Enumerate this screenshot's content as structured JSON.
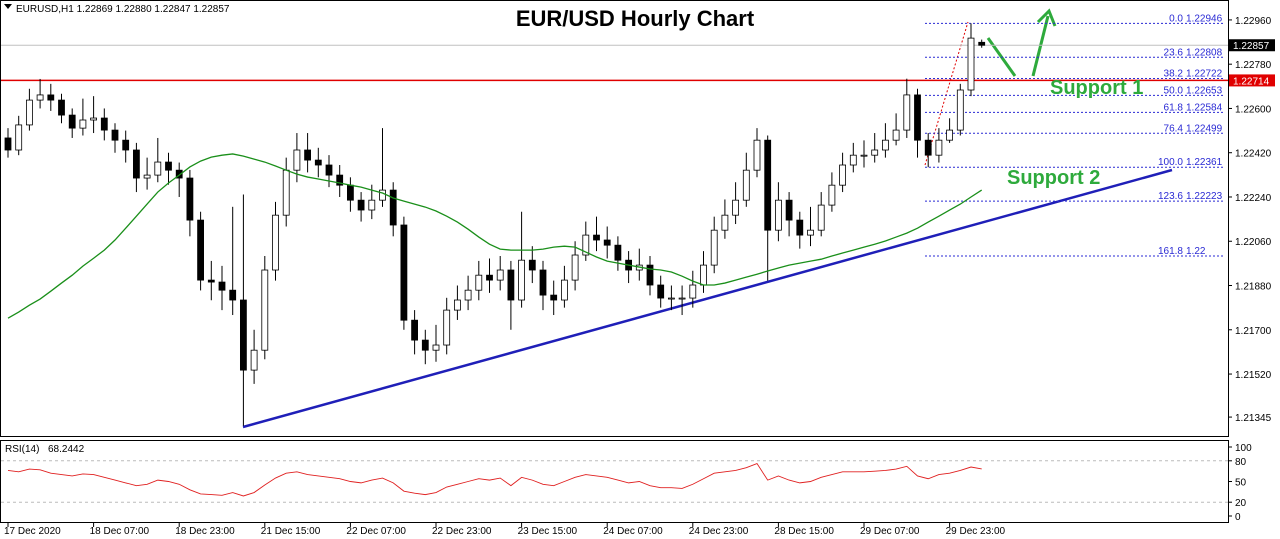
{
  "chart_data": {
    "type": "candlestick",
    "title": "EUR/USD Hourly Chart",
    "header": "EURUSD,H1  1.22869 1.22880 1.22847 1.22857",
    "up_color": "#ffffff",
    "down_color": "#000000",
    "candles": [
      [
        1.2248,
        1.2252,
        1.224,
        1.22431
      ],
      [
        1.22431,
        1.2257,
        1.2241,
        1.22533
      ],
      [
        1.22533,
        1.2268,
        1.2251,
        1.22634
      ],
      [
        1.22634,
        1.2272,
        1.226,
        1.22655
      ],
      [
        1.22655,
        1.227,
        1.2259,
        1.22634
      ],
      [
        1.22634,
        1.2266,
        1.2254,
        1.22573
      ],
      [
        1.22573,
        1.226,
        1.2248,
        1.2252
      ],
      [
        1.2252,
        1.2264,
        1.2249,
        1.22553
      ],
      [
        1.22553,
        1.2265,
        1.225,
        1.22561
      ],
      [
        1.22561,
        1.226,
        1.2247,
        1.22512
      ],
      [
        1.22512,
        1.2254,
        1.2242,
        1.22471
      ],
      [
        1.22471,
        1.2251,
        1.2238,
        1.22431
      ],
      [
        1.22431,
        1.2246,
        1.2226,
        1.22317
      ],
      [
        1.22317,
        1.224,
        1.2227,
        1.22329
      ],
      [
        1.22329,
        1.2248,
        1.223,
        1.22382
      ],
      [
        1.22382,
        1.2242,
        1.2229,
        1.22349
      ],
      [
        1.22349,
        1.2238,
        1.2224,
        1.22317
      ],
      [
        1.22317,
        1.2235,
        1.2208,
        1.22146
      ],
      [
        1.22146,
        1.2218,
        1.2186,
        1.21902
      ],
      [
        1.21902,
        1.2198,
        1.2182,
        1.21894
      ],
      [
        1.21894,
        1.2196,
        1.2178,
        1.21861
      ],
      [
        1.21861,
        1.222,
        1.2176,
        1.21821
      ],
      [
        1.21821,
        1.2225,
        1.2131,
        1.21536
      ],
      [
        1.21536,
        1.217,
        1.2148,
        1.21617
      ],
      [
        1.21617,
        1.22,
        1.2158,
        1.21943
      ],
      [
        1.21943,
        1.2222,
        1.219,
        1.22166
      ],
      [
        1.22166,
        1.224,
        1.2212,
        1.22349
      ],
      [
        1.22349,
        1.225,
        1.223,
        1.22431
      ],
      [
        1.22431,
        1.225,
        1.2234,
        1.2239
      ],
      [
        1.2239,
        1.2244,
        1.2232,
        1.2237
      ],
      [
        1.2237,
        1.2241,
        1.2228,
        1.22329
      ],
      [
        1.22329,
        1.2237,
        1.2224,
        1.22288
      ],
      [
        1.22288,
        1.2232,
        1.2218,
        1.22227
      ],
      [
        1.22227,
        1.2226,
        1.2214,
        1.22187
      ],
      [
        1.22187,
        1.2229,
        1.2215,
        1.22227
      ],
      [
        1.22227,
        1.2252,
        1.222,
        1.22268
      ],
      [
        1.22268,
        1.223,
        1.2208,
        1.22126
      ],
      [
        1.22126,
        1.2216,
        1.217,
        1.21739
      ],
      [
        1.21739,
        1.2178,
        1.216,
        1.21658
      ],
      [
        1.21658,
        1.217,
        1.2156,
        1.21617
      ],
      [
        1.21617,
        1.2172,
        1.2157,
        1.21638
      ],
      [
        1.21638,
        1.2183,
        1.216,
        1.2178
      ],
      [
        1.2178,
        1.2188,
        1.2174,
        1.21821
      ],
      [
        1.21821,
        1.2192,
        1.2178,
        1.21861
      ],
      [
        1.21861,
        1.2198,
        1.2182,
        1.21922
      ],
      [
        1.21922,
        1.2199,
        1.2185,
        1.21902
      ],
      [
        1.21902,
        1.22,
        1.2186,
        1.21943
      ],
      [
        1.21943,
        1.2198,
        1.217,
        1.21821
      ],
      [
        1.21821,
        1.2218,
        1.2179,
        1.21983
      ],
      [
        1.21983,
        1.2204,
        1.2189,
        1.21943
      ],
      [
        1.21943,
        1.2198,
        1.2178,
        1.21841
      ],
      [
        1.21841,
        1.219,
        1.2176,
        1.21821
      ],
      [
        1.21821,
        1.2196,
        1.2179,
        1.21902
      ],
      [
        1.21902,
        1.2206,
        1.2186,
        1.22004
      ],
      [
        1.22004,
        1.2214,
        1.2198,
        1.22085
      ],
      [
        1.22085,
        1.2216,
        1.2202,
        1.22065
      ],
      [
        1.22065,
        1.2212,
        1.2199,
        1.22044
      ],
      [
        1.22044,
        1.2208,
        1.2194,
        1.21983
      ],
      [
        1.21983,
        1.2202,
        1.2189,
        1.21943
      ],
      [
        1.21943,
        1.2203,
        1.219,
        1.21963
      ],
      [
        1.21963,
        1.22,
        1.2184,
        1.21882
      ],
      [
        1.21882,
        1.2192,
        1.2179,
        1.21829
      ],
      [
        1.21829,
        1.2188,
        1.2178,
        1.21829
      ],
      [
        1.21829,
        1.2188,
        1.2176,
        1.21829
      ],
      [
        1.21829,
        1.2194,
        1.2179,
        1.21882
      ],
      [
        1.21882,
        1.2202,
        1.2185,
        1.21963
      ],
      [
        1.21963,
        1.2216,
        1.2193,
        1.22105
      ],
      [
        1.22105,
        1.2223,
        1.2207,
        1.22166
      ],
      [
        1.22166,
        1.223,
        1.2213,
        1.22227
      ],
      [
        1.22227,
        1.2242,
        1.222,
        1.22349
      ],
      [
        1.22349,
        1.2252,
        1.2232,
        1.22471
      ],
      [
        1.22471,
        1.2249,
        1.219,
        1.22105
      ],
      [
        1.22105,
        1.223,
        1.2206,
        1.22227
      ],
      [
        1.22227,
        1.2226,
        1.2208,
        1.22146
      ],
      [
        1.22146,
        1.2218,
        1.2203,
        1.22085
      ],
      [
        1.22085,
        1.222,
        1.2204,
        1.22105
      ],
      [
        1.22105,
        1.2226,
        1.2208,
        1.22207
      ],
      [
        1.22207,
        1.2234,
        1.2218,
        1.22288
      ],
      [
        1.22288,
        1.2242,
        1.2226,
        1.2237
      ],
      [
        1.2237,
        1.2246,
        1.2234,
        1.2241
      ],
      [
        1.2241,
        1.2247,
        1.2236,
        1.2241
      ],
      [
        1.2241,
        1.225,
        1.2238,
        1.22431
      ],
      [
        1.22431,
        1.2254,
        1.224,
        1.22471
      ],
      [
        1.22471,
        1.2258,
        1.2245,
        1.22512
      ],
      [
        1.22512,
        1.22721,
        1.2248,
        1.22655
      ],
      [
        1.22655,
        1.2268,
        1.224,
        1.22471
      ],
      [
        1.22471,
        1.225,
        1.22361,
        1.2241
      ],
      [
        1.2241,
        1.2252,
        1.2238,
        1.22471
      ],
      [
        1.22471,
        1.2256,
        1.2246,
        1.22512
      ],
      [
        1.22512,
        1.227,
        1.2249,
        1.22675
      ],
      [
        1.22675,
        1.22946,
        1.2265,
        1.22886
      ],
      [
        1.22869,
        1.2288,
        1.22847,
        1.22857
      ]
    ],
    "ma": {
      "color": "#1a8f1a",
      "values": [
        1.21747,
        1.21772,
        1.218,
        1.21825,
        1.21857,
        1.2189,
        1.21922,
        1.21959,
        1.21991,
        1.22024,
        1.22065,
        1.22113,
        1.22162,
        1.22211,
        1.2226,
        1.22297,
        1.22329,
        1.22362,
        1.22386,
        1.22402,
        1.2241,
        1.22415,
        1.22406,
        1.22394,
        1.22382,
        1.22366,
        1.22349,
        1.22333,
        1.22321,
        1.22313,
        1.22305,
        1.22297,
        1.22288,
        1.2228,
        1.22268,
        1.22256,
        1.22236,
        1.22223,
        1.22211,
        1.22199,
        1.22183,
        1.22162,
        1.22138,
        1.22109,
        1.22077,
        1.22048,
        1.22028,
        1.22024,
        1.22024,
        1.22024,
        1.22028,
        1.22036,
        1.2204,
        1.22036,
        1.22016,
        1.21996,
        1.21979,
        1.21971,
        1.21963,
        1.21955,
        1.21947,
        1.21943,
        1.21935,
        1.21918,
        1.21898,
        1.21882,
        1.21882,
        1.2189,
        1.21902,
        1.21914,
        1.21926,
        1.21939,
        1.21951,
        1.21963,
        1.21971,
        1.21979,
        1.21987,
        1.22,
        1.22012,
        1.22024,
        1.22036,
        1.22048,
        1.22061,
        1.22077,
        1.22093,
        1.22113,
        1.22138,
        1.22162,
        1.22187,
        1.22211,
        1.2224,
        1.22268
      ]
    },
    "ylim": [
      1.21264,
      1.23041
    ],
    "yticks": [
      {
        "value": 1.2296,
        "label": "1.22960"
      },
      {
        "value": 1.2278,
        "label": "1.22780"
      },
      {
        "value": 1.226,
        "label": "1.22600"
      },
      {
        "value": 1.2242,
        "label": "1.22420"
      },
      {
        "value": 1.2224,
        "label": "1.22240"
      },
      {
        "value": 1.2206,
        "label": "1.22060"
      },
      {
        "value": 1.2188,
        "label": "1.21880"
      },
      {
        "value": 1.217,
        "label": "1.21700"
      },
      {
        "value": 1.2152,
        "label": "1.21520"
      },
      1.21345
    ],
    "xticks": [
      {
        "value": 0,
        "label": "17 Dec 2020"
      },
      {
        "value": 8,
        "label": "18 Dec 07:00"
      },
      {
        "value": 16,
        "label": "18 Dec 23:00"
      },
      {
        "value": 24,
        "label": "21 Dec 15:00"
      },
      {
        "value": 32,
        "label": "22 Dec 07:00"
      },
      {
        "value": 40,
        "label": "22 Dec 23:00"
      },
      {
        "value": 48,
        "label": "23 Dec 15:00"
      },
      {
        "value": 56,
        "label": "24 Dec 07:00"
      },
      {
        "value": 64,
        "label": "24 Dec 23:00"
      },
      {
        "value": 72,
        "label": "28 Dec 15:00"
      },
      {
        "value": 80,
        "label": "29 Dec 07:00"
      },
      {
        "value": 88,
        "label": "29 Dec 23:00"
      }
    ],
    "hline": {
      "value": 1.22714,
      "color": "#e00000"
    },
    "fib": {
      "color": "#2a2ad4",
      "levels": [
        {
          "level": "0.0",
          "value": 1.22946
        },
        {
          "level": "23.6",
          "value": 1.22808
        },
        {
          "level": "38.2",
          "value": 1.22722
        },
        {
          "level": "50.0",
          "value": 1.22653
        },
        {
          "level": "61.8",
          "value": 1.22584
        },
        {
          "level": "76.4",
          "value": 1.22499
        },
        {
          "level": "100.0",
          "value": 1.22361
        },
        {
          "level": "123.6",
          "value": 1.22223
        },
        {
          "level": "161.8",
          "value": 1.22
        }
      ]
    },
    "annotations": [
      "Support 1",
      "Support 2"
    ],
    "rsi": {
      "label": "RSI(14)",
      "color": "#e02020",
      "ylim": [
        0,
        100
      ],
      "yticks": [
        100,
        80,
        50,
        20,
        0
      ],
      "levels": [
        80,
        20
      ],
      "values": [
        66,
        64,
        68,
        67,
        62,
        60,
        58,
        61,
        60,
        56,
        52,
        48,
        44,
        46,
        52,
        50,
        46,
        38,
        32,
        31,
        30,
        34,
        29,
        34,
        45,
        55,
        62,
        64,
        60,
        58,
        56,
        54,
        50,
        48,
        52,
        55,
        48,
        36,
        33,
        31,
        34,
        42,
        46,
        50,
        54,
        52,
        55,
        44,
        56,
        52,
        46,
        44,
        50,
        56,
        60,
        58,
        56,
        52,
        48,
        50,
        44,
        41,
        41,
        40,
        46,
        54,
        62,
        64,
        66,
        70,
        76,
        52,
        58,
        52,
        48,
        50,
        56,
        60,
        64,
        64,
        64,
        65,
        66,
        68,
        72,
        58,
        54,
        60,
        62,
        66,
        71,
        68.2442
      ]
    }
  }
}
